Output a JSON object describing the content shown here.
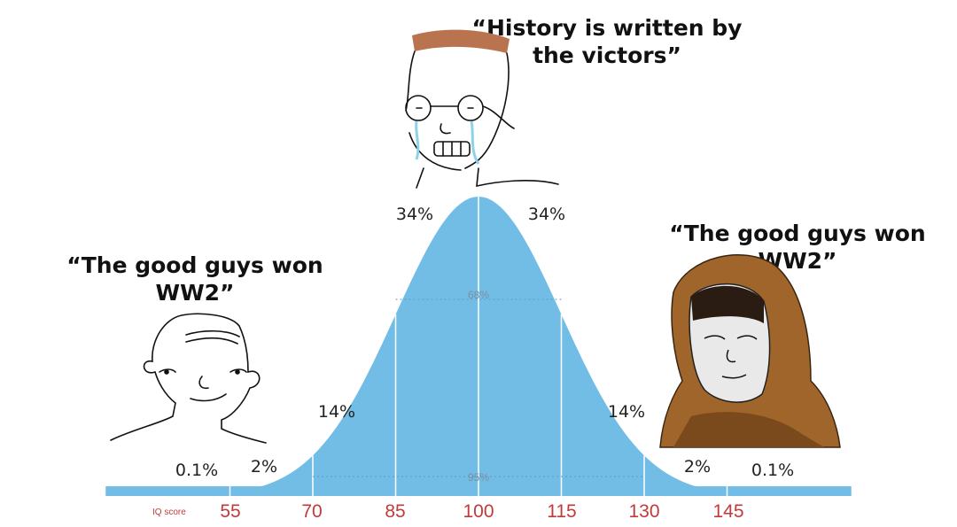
{
  "captions": {
    "left": "“The good guys won WW2”",
    "top": "“History is written by the victors”",
    "right": "“The good guys won WW2”"
  },
  "figures": {
    "left": "wojak-simple",
    "top": "wojak-crying-glasses",
    "right": "hooded-figure"
  },
  "chart_data": {
    "type": "area",
    "distribution": "normal",
    "mean": 100,
    "sd": 15,
    "xlabel": "IQ score",
    "x_ticks": [
      "55",
      "70",
      "85",
      "100",
      "115",
      "130",
      "145"
    ],
    "segment_labels": [
      "0.1%",
      "2%",
      "14%",
      "34%",
      "34%",
      "14%",
      "2%",
      "0.1%"
    ],
    "inner_labels": {
      "one_sd": "68%",
      "two_sd": "95%"
    },
    "fill_color": "#72bde6",
    "tick_color": "#c23a3a"
  }
}
